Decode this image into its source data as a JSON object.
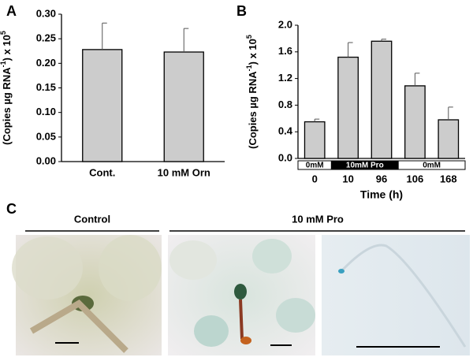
{
  "chart_data": [
    {
      "type": "bar",
      "panel": "A",
      "ylabel": [
        "(Copies  µg RNA",
        "-1",
        ") x 10",
        "5"
      ],
      "categories": [
        "Cont.",
        "10 mM Orn"
      ],
      "values": [
        0.228,
        0.223
      ],
      "errors": [
        0.054,
        0.048
      ],
      "color": "#cccccc",
      "ylim": [
        0,
        0.3
      ],
      "yticks": [
        {
          "value": 0,
          "label": "0.00"
        },
        {
          "value": 0.05,
          "label": "0.05"
        },
        {
          "value": 0.1,
          "label": "0.10"
        },
        {
          "value": 0.15,
          "label": "0.15"
        },
        {
          "value": 0.2,
          "label": "0.20"
        },
        {
          "value": 0.25,
          "label": "0.25"
        },
        {
          "value": 0.3,
          "label": "0.30"
        }
      ]
    },
    {
      "type": "bar",
      "panel": "B",
      "ylabel": [
        "(Copies  µg RNA",
        "-1",
        ") x 10",
        "5"
      ],
      "xlabel": "Time (h)",
      "categories": [
        "0",
        "10",
        "96",
        "106",
        "168"
      ],
      "values": [
        0.55,
        1.52,
        1.76,
        1.09,
        0.58
      ],
      "errors": [
        0.04,
        0.22,
        0.03,
        0.19,
        0.19
      ],
      "color": "#cccccc",
      "ylim": [
        0,
        2.0
      ],
      "yticks": [
        {
          "value": 0,
          "label": "0.0"
        },
        {
          "value": 0.4,
          "label": "0.4"
        },
        {
          "value": 0.8,
          "label": "0.8"
        },
        {
          "value": 1.2,
          "label": "1.2"
        },
        {
          "value": 1.6,
          "label": "1.6"
        },
        {
          "value": 2.0,
          "label": "2.0"
        }
      ],
      "treatments": [
        {
          "label": "0mM",
          "span": 1,
          "color": "#ffffff"
        },
        {
          "label": "10mM Pro",
          "span": 2,
          "color": "#000000"
        },
        {
          "label": "0mM",
          "span": 2,
          "color": "#ffffff"
        }
      ]
    }
  ],
  "panel_c": {
    "letter": "C",
    "groups": [
      "Control",
      "10 mM Pro"
    ]
  }
}
